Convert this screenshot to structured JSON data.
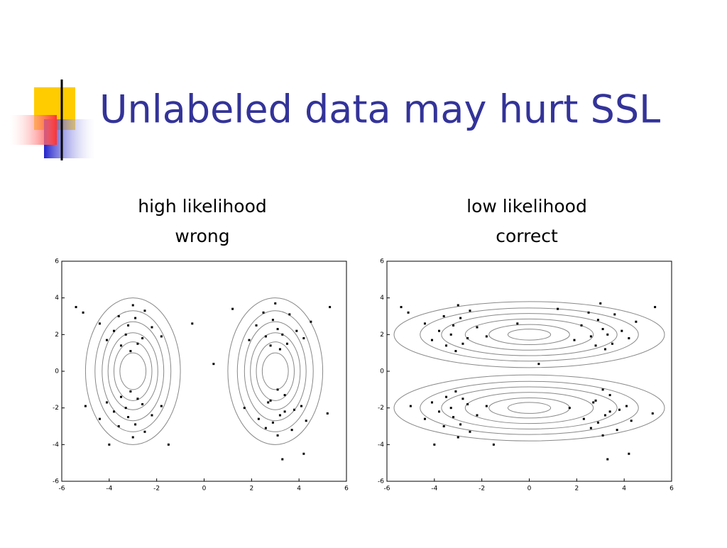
{
  "title": "Unlabeled data may hurt SSL",
  "chart_data": [
    {
      "type": "scatter",
      "title": [
        "high likelihood",
        "wrong"
      ],
      "x": [
        -3.2,
        -2.6,
        -3.5,
        -2.9,
        -3.8,
        -2.2,
        -3.1,
        -4.1,
        -2.5,
        -3.6,
        -2.8,
        -3.3,
        -1.8,
        -4.4,
        -3.0,
        3.1,
        2.6,
        3.5,
        2.9,
        3.9,
        2.2,
        3.2,
        4.2,
        2.5,
        3.6,
        2.8,
        3.3,
        1.9,
        4.5,
        3.0,
        -3.2,
        -2.6,
        -3.5,
        -2.9,
        -3.8,
        -2.2,
        -3.1,
        -4.1,
        -2.5,
        -3.6,
        -2.8,
        -3.3,
        -1.8,
        -4.4,
        -3.0,
        3.2,
        2.7,
        3.4,
        2.9,
        3.8,
        2.3,
        3.1,
        4.1,
        2.6,
        3.7,
        2.8,
        3.4,
        1.7,
        4.3,
        3.1,
        -5.1,
        -5.4,
        5.3,
        5.2,
        -1.5,
        3.3,
        4.2,
        0.4,
        -0.5,
        1.2,
        -5.0,
        -4.0
      ],
      "y": [
        2.5,
        1.8,
        1.4,
        2.9,
        2.2,
        2.4,
        1.1,
        1.7,
        3.3,
        3.0,
        1.5,
        2.0,
        1.9,
        2.6,
        3.6,
        2.3,
        1.9,
        1.5,
        2.8,
        2.2,
        2.5,
        1.2,
        1.8,
        3.2,
        3.1,
        1.4,
        2.0,
        1.7,
        2.7,
        3.7,
        -2.5,
        -1.8,
        -1.4,
        -2.9,
        -2.2,
        -2.4,
        -1.1,
        -1.7,
        -3.3,
        -3.0,
        -1.5,
        -2.0,
        -1.9,
        -2.6,
        -3.6,
        -2.4,
        -1.7,
        -1.3,
        -2.8,
        -2.1,
        -2.6,
        -1.0,
        -1.9,
        -3.1,
        -3.2,
        -1.6,
        -2.2,
        -2.0,
        -2.7,
        -3.5,
        3.2,
        3.5,
        3.5,
        -2.3,
        -4.0,
        -4.8,
        -4.5,
        0.4,
        2.6,
        3.4,
        -1.9,
        -4.0
      ],
      "xlim": [
        -6,
        6
      ],
      "ylim": [
        -6,
        6
      ],
      "xticks": [
        -6,
        -4,
        -2,
        0,
        2,
        4,
        6
      ],
      "yticks": [
        -6,
        -4,
        -2,
        0,
        2,
        4,
        6
      ],
      "color": "#000000",
      "contour_color": "#888888",
      "contours": [
        {
          "cx": -3,
          "cy": 0,
          "rx": [
            2.0,
            1.6,
            1.3,
            1.05,
            0.8,
            0.55
          ],
          "ry": [
            4.0,
            3.3,
            2.7,
            2.1,
            1.6,
            1.0
          ]
        },
        {
          "cx": 3,
          "cy": 0,
          "rx": [
            2.0,
            1.6,
            1.3,
            1.05,
            0.8,
            0.55
          ],
          "ry": [
            4.0,
            3.3,
            2.7,
            2.1,
            1.6,
            1.0
          ]
        }
      ]
    },
    {
      "type": "scatter",
      "title": [
        "low likelihood",
        "correct"
      ],
      "x": [
        -3.2,
        -2.6,
        -3.5,
        -2.9,
        -3.8,
        -2.2,
        -3.1,
        -4.1,
        -2.5,
        -3.6,
        -2.8,
        -3.3,
        -1.8,
        -4.4,
        -3.0,
        3.1,
        2.6,
        3.5,
        2.9,
        3.9,
        2.2,
        3.2,
        4.2,
        2.5,
        3.6,
        2.8,
        3.3,
        1.9,
        4.5,
        3.0,
        -3.2,
        -2.6,
        -3.5,
        -2.9,
        -3.8,
        -2.2,
        -3.1,
        -4.1,
        -2.5,
        -3.6,
        -2.8,
        -3.3,
        -1.8,
        -4.4,
        -3.0,
        3.2,
        2.7,
        3.4,
        2.9,
        3.8,
        2.3,
        3.1,
        4.1,
        2.6,
        3.7,
        2.8,
        3.4,
        1.7,
        4.3,
        3.1,
        -5.1,
        -5.4,
        5.3,
        5.2,
        -1.5,
        3.3,
        4.2,
        0.4,
        -0.5,
        1.2,
        -5.0,
        -4.0
      ],
      "y": [
        2.5,
        1.8,
        1.4,
        2.9,
        2.2,
        2.4,
        1.1,
        1.7,
        3.3,
        3.0,
        1.5,
        2.0,
        1.9,
        2.6,
        3.6,
        2.3,
        1.9,
        1.5,
        2.8,
        2.2,
        2.5,
        1.2,
        1.8,
        3.2,
        3.1,
        1.4,
        2.0,
        1.7,
        2.7,
        3.7,
        -2.5,
        -1.8,
        -1.4,
        -2.9,
        -2.2,
        -2.4,
        -1.1,
        -1.7,
        -3.3,
        -3.0,
        -1.5,
        -2.0,
        -1.9,
        -2.6,
        -3.6,
        -2.4,
        -1.7,
        -1.3,
        -2.8,
        -2.1,
        -2.6,
        -1.0,
        -1.9,
        -3.1,
        -3.2,
        -1.6,
        -2.2,
        -2.0,
        -2.7,
        -3.5,
        3.2,
        3.5,
        3.5,
        -2.3,
        -4.0,
        -4.8,
        -4.5,
        0.4,
        2.6,
        3.4,
        -1.9,
        -4.0
      ],
      "xlim": [
        -6,
        6
      ],
      "ylim": [
        -6,
        6
      ],
      "xticks": [
        -6,
        -4,
        -2,
        0,
        2,
        4,
        6
      ],
      "yticks": [
        -6,
        -4,
        -2,
        0,
        2,
        4,
        6
      ],
      "color": "#000000",
      "contour_color": "#888888",
      "contours": [
        {
          "cx": 0,
          "cy": 2,
          "rx": [
            5.7,
            4.6,
            3.7,
            2.7,
            1.7,
            0.9
          ],
          "ry": [
            1.8,
            1.45,
            1.15,
            0.85,
            0.55,
            0.3
          ]
        },
        {
          "cx": 0,
          "cy": -2,
          "rx": [
            5.7,
            4.6,
            3.7,
            2.7,
            1.7,
            0.9
          ],
          "ry": [
            1.8,
            1.45,
            1.15,
            0.85,
            0.55,
            0.3
          ]
        }
      ]
    }
  ]
}
